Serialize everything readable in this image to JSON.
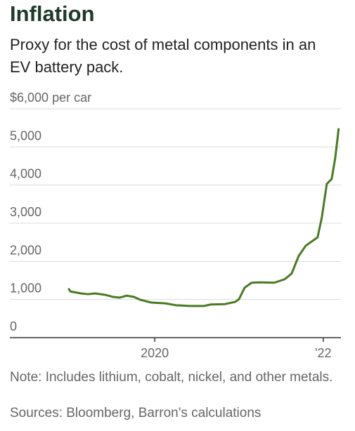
{
  "chart_data": {
    "type": "line",
    "title": "Inflation",
    "subtitle": "Proxy for the cost of metal components in an EV battery pack.",
    "y_unit": "per car",
    "note": "Note: Includes lithium, cobalt, nickel, and other metals.",
    "source": "Sources: Bloomberg, Barron's calculations",
    "x": [
      2018.975,
      2019.0,
      2019.125,
      2019.208,
      2019.292,
      2019.417,
      2019.5,
      2019.583,
      2019.667,
      2019.75,
      2019.833,
      2019.958,
      2020.125,
      2020.25,
      2020.417,
      2020.583,
      2020.667,
      2020.833,
      2020.958,
      2021.0,
      2021.067,
      2021.15,
      2021.25,
      2021.417,
      2021.542,
      2021.625,
      2021.708,
      2021.792,
      2021.875,
      2021.933,
      2021.983,
      2022.042,
      2022.1,
      2022.142,
      2022.167,
      2022.183
    ],
    "series": [
      {
        "color": "#4a7a23",
        "values": [
          1290,
          1210,
          1160,
          1140,
          1160,
          1120,
          1070,
          1050,
          1100,
          1070,
          990,
          920,
          900,
          850,
          830,
          830,
          870,
          880,
          940,
          1010,
          1310,
          1440,
          1450,
          1440,
          1530,
          1680,
          2140,
          2410,
          2540,
          2630,
          3150,
          4030,
          4160,
          4710,
          5170,
          5490
        ]
      }
    ],
    "xlim": [
      2018.28,
      2022.21
    ],
    "xticks": [
      2020,
      {
        "value": 2022,
        "label": "'22"
      }
    ],
    "ylim": [
      0,
      6000
    ],
    "yticks": [
      0,
      {
        "value": 1000,
        "label": "1,000"
      },
      {
        "value": 2000,
        "label": "2,000"
      },
      {
        "value": 3000,
        "label": "3,000"
      },
      {
        "value": 4000,
        "label": "4,000"
      },
      {
        "value": 5000,
        "label": "5,000"
      },
      {
        "value": 6000,
        "label": "$6,000"
      }
    ],
    "grid": true
  }
}
